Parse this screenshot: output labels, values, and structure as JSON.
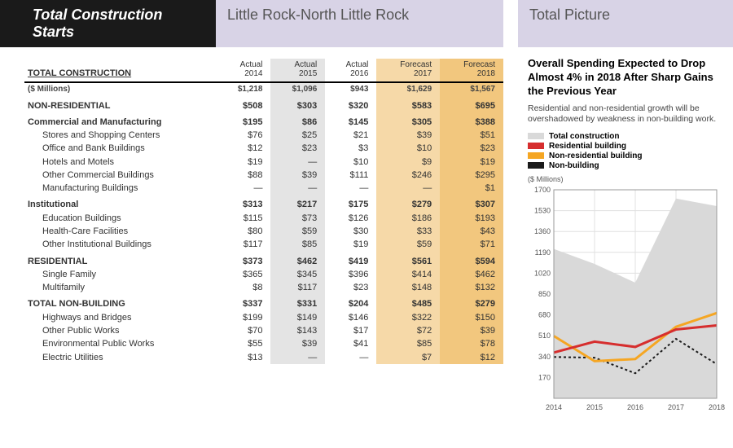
{
  "header": {
    "title_black": "Total Construction Starts",
    "title_lilac": "Little Rock-North Little Rock",
    "title_picture": "Total Picture"
  },
  "table": {
    "head_left": "TOTAL CONSTRUCTION",
    "columns": [
      {
        "line1": "Actual",
        "line2": "2014",
        "cls": ""
      },
      {
        "line1": "Actual",
        "line2": "2015",
        "cls": "col-actual15"
      },
      {
        "line1": "Actual",
        "line2": "2016",
        "cls": ""
      },
      {
        "line1": "Forecast",
        "line2": "2017",
        "cls": "col-fore17"
      },
      {
        "line1": "Forecast",
        "line2": "2018",
        "cls": "col-fore18"
      }
    ],
    "rows": [
      {
        "type": "unit",
        "label": "($ Millions)",
        "vals": [
          "$1,218",
          "$1,096",
          "$943",
          "$1,629",
          "$1,567"
        ],
        "bold": true
      },
      {
        "type": "section",
        "label": "NON-RESIDENTIAL",
        "vals": [
          "$508",
          "$303",
          "$320",
          "$583",
          "$695"
        ]
      },
      {
        "type": "group",
        "label": "Commercial and Manufacturing",
        "vals": [
          "$195",
          "$86",
          "$145",
          "$305",
          "$388"
        ]
      },
      {
        "type": "sub",
        "label": "Stores and Shopping Centers",
        "vals": [
          "$76",
          "$25",
          "$21",
          "$39",
          "$51"
        ]
      },
      {
        "type": "sub",
        "label": "Office and Bank Buildings",
        "vals": [
          "$12",
          "$23",
          "$3",
          "$10",
          "$23"
        ]
      },
      {
        "type": "sub",
        "label": "Hotels and Motels",
        "vals": [
          "$19",
          "—",
          "$10",
          "$9",
          "$19"
        ]
      },
      {
        "type": "sub",
        "label": "Other Commercial Buildings",
        "vals": [
          "$88",
          "$39",
          "$111",
          "$246",
          "$295"
        ]
      },
      {
        "type": "sub",
        "label": "Manufacturing Buildings",
        "vals": [
          "—",
          "—",
          "—",
          "—",
          "$1"
        ]
      },
      {
        "type": "group",
        "label": "Institutional",
        "vals": [
          "$313",
          "$217",
          "$175",
          "$279",
          "$307"
        ]
      },
      {
        "type": "sub",
        "label": "Education Buildings",
        "vals": [
          "$115",
          "$73",
          "$126",
          "$186",
          "$193"
        ]
      },
      {
        "type": "sub",
        "label": "Health-Care Facilities",
        "vals": [
          "$80",
          "$59",
          "$30",
          "$33",
          "$43"
        ]
      },
      {
        "type": "sub",
        "label": "Other Institutional Buildings",
        "vals": [
          "$117",
          "$85",
          "$19",
          "$59",
          "$71"
        ]
      },
      {
        "type": "section",
        "label": "RESIDENTIAL",
        "vals": [
          "$373",
          "$462",
          "$419",
          "$561",
          "$594"
        ]
      },
      {
        "type": "sub",
        "label": "Single Family",
        "vals": [
          "$365",
          "$345",
          "$396",
          "$414",
          "$462"
        ]
      },
      {
        "type": "sub",
        "label": "Multifamily",
        "vals": [
          "$8",
          "$117",
          "$23",
          "$148",
          "$132"
        ]
      },
      {
        "type": "section",
        "label": "TOTAL NON-BUILDING",
        "vals": [
          "$337",
          "$331",
          "$204",
          "$485",
          "$279"
        ]
      },
      {
        "type": "sub",
        "label": "Highways and Bridges",
        "vals": [
          "$199",
          "$149",
          "$146",
          "$322",
          "$150"
        ]
      },
      {
        "type": "sub",
        "label": "Other Public Works",
        "vals": [
          "$70",
          "$143",
          "$17",
          "$72",
          "$39"
        ]
      },
      {
        "type": "sub",
        "label": "Environmental Public Works",
        "vals": [
          "$55",
          "$39",
          "$41",
          "$85",
          "$78"
        ]
      },
      {
        "type": "sub",
        "label": "Electric Utilities",
        "vals": [
          "$13",
          "—",
          "—",
          "$7",
          "$12"
        ]
      }
    ]
  },
  "side": {
    "headline": "Overall Spending Expected to Drop Almost 4% in 2018 After Sharp Gains the Previous Year",
    "sub": "Residential and non-residential growth will be overshadowed by weakness in non-building work.",
    "legend": [
      {
        "label": "Total construction",
        "color": "#d9d9d9"
      },
      {
        "label": "Residential building",
        "color": "#d62e2e"
      },
      {
        "label": "Non-residential building",
        "color": "#f5a623"
      },
      {
        "label": "Non-building",
        "color": "#1a1a1a"
      }
    ],
    "chart_unit": "($ Millions)"
  },
  "chart": {
    "type": "line-area",
    "xlabels": [
      "2014",
      "2015",
      "2016",
      "2017",
      "2018"
    ],
    "ylim": [
      0,
      1700
    ],
    "yticks": [
      170,
      340,
      510,
      680,
      850,
      1020,
      1190,
      1360,
      1530,
      1700
    ],
    "grid_color": "#e0e0e0",
    "background": "#ffffff",
    "series": [
      {
        "name": "Total construction",
        "kind": "area",
        "color": "#d9d9d9",
        "vals": [
          1218,
          1096,
          943,
          1629,
          1567
        ]
      },
      {
        "name": "Non-building",
        "kind": "line",
        "color": "#1a1a1a",
        "width": 2,
        "dash": "3,3",
        "vals": [
          337,
          331,
          204,
          485,
          279
        ]
      },
      {
        "name": "Non-residential building",
        "kind": "line",
        "color": "#f5a623",
        "width": 3,
        "vals": [
          508,
          303,
          320,
          583,
          695
        ]
      },
      {
        "name": "Residential building",
        "kind": "line",
        "color": "#d62e2e",
        "width": 3,
        "vals": [
          373,
          462,
          419,
          561,
          594
        ]
      }
    ]
  }
}
